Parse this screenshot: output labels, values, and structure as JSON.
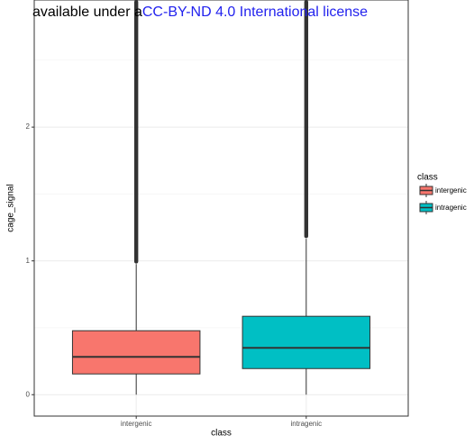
{
  "header": {
    "text": "available under a",
    "link": "CC-BY-ND 4.0 International license"
  },
  "chart_data": {
    "type": "boxplot",
    "x_label": "class",
    "y_label": "cage_signal",
    "categories": [
      "intergenic",
      "intragenic"
    ],
    "series": [
      {
        "name": "intergenic",
        "color": "#F8766D",
        "whisker_low": 0,
        "q1": 0.155,
        "median": 0.283,
        "q3": 0.478,
        "whisker_high": 0.976,
        "outlier_low": 0.98,
        "outlier_high": 2.95
      },
      {
        "name": "intragenic",
        "color": "#00BFC4",
        "whisker_low": 0,
        "q1": 0.195,
        "median": 0.35,
        "q3": 0.586,
        "whisker_high": 1.165,
        "outlier_low": 1.17,
        "outlier_high": 2.95
      }
    ],
    "ylim": [
      -0.16,
      2.95
    ],
    "yticks": [
      0,
      1,
      2
    ],
    "minor_grid": [
      0.5,
      1.5,
      2.5
    ],
    "grid": true,
    "legend_title": "class",
    "legend": "right"
  }
}
